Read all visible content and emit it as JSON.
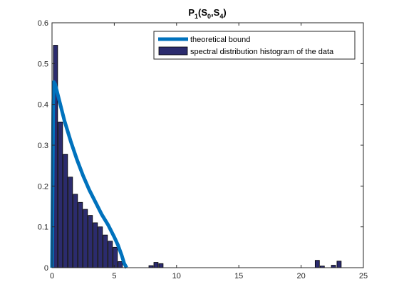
{
  "chart_data": {
    "type": "bar",
    "title": {
      "base": "P",
      "sub1": "1",
      "mid": "(S",
      "sub2": "0",
      "comma": ",S",
      "sub3": "4",
      "end": ")"
    },
    "xlabel": "",
    "ylabel": "",
    "xlim": [
      0,
      25
    ],
    "ylim": [
      0,
      0.6
    ],
    "xticks": [
      0,
      5,
      10,
      15,
      20,
      25
    ],
    "yticks": [
      0,
      0.1,
      0.2,
      0.3,
      0.4,
      0.5,
      0.6
    ],
    "grid": false,
    "legend_position": "top-right",
    "bar_width": 0.34,
    "histogram": {
      "name": "spectral distribution histogram of the  data",
      "color": "#2b2b6e",
      "edge_color": "#000000",
      "x": [
        0.28,
        0.68,
        1.08,
        1.48,
        1.88,
        2.28,
        2.68,
        3.08,
        3.48,
        3.88,
        4.28,
        4.68,
        5.08,
        5.48,
        7.95,
        8.35,
        8.75,
        21.3,
        21.7,
        22.6,
        23.05
      ],
      "values": [
        0.545,
        0.357,
        0.278,
        0.222,
        0.18,
        0.16,
        0.143,
        0.128,
        0.11,
        0.1,
        0.08,
        0.065,
        0.05,
        0.015,
        0.005,
        0.013,
        0.01,
        0.018,
        0.004,
        0.006,
        0.016
      ]
    },
    "bound": {
      "name": "theoretical bound",
      "color": "#0072bd",
      "x": [
        0.0,
        0.1,
        0.15,
        0.25,
        0.5,
        1.0,
        1.5,
        2.0,
        2.5,
        3.0,
        3.5,
        4.0,
        4.5,
        5.0,
        5.3,
        5.6,
        5.8,
        5.95,
        6.0
      ],
      "y": [
        0.0,
        0.4,
        0.455,
        0.45,
        0.42,
        0.36,
        0.31,
        0.265,
        0.225,
        0.19,
        0.16,
        0.13,
        0.105,
        0.075,
        0.055,
        0.03,
        0.01,
        0.002,
        0.0
      ]
    }
  }
}
